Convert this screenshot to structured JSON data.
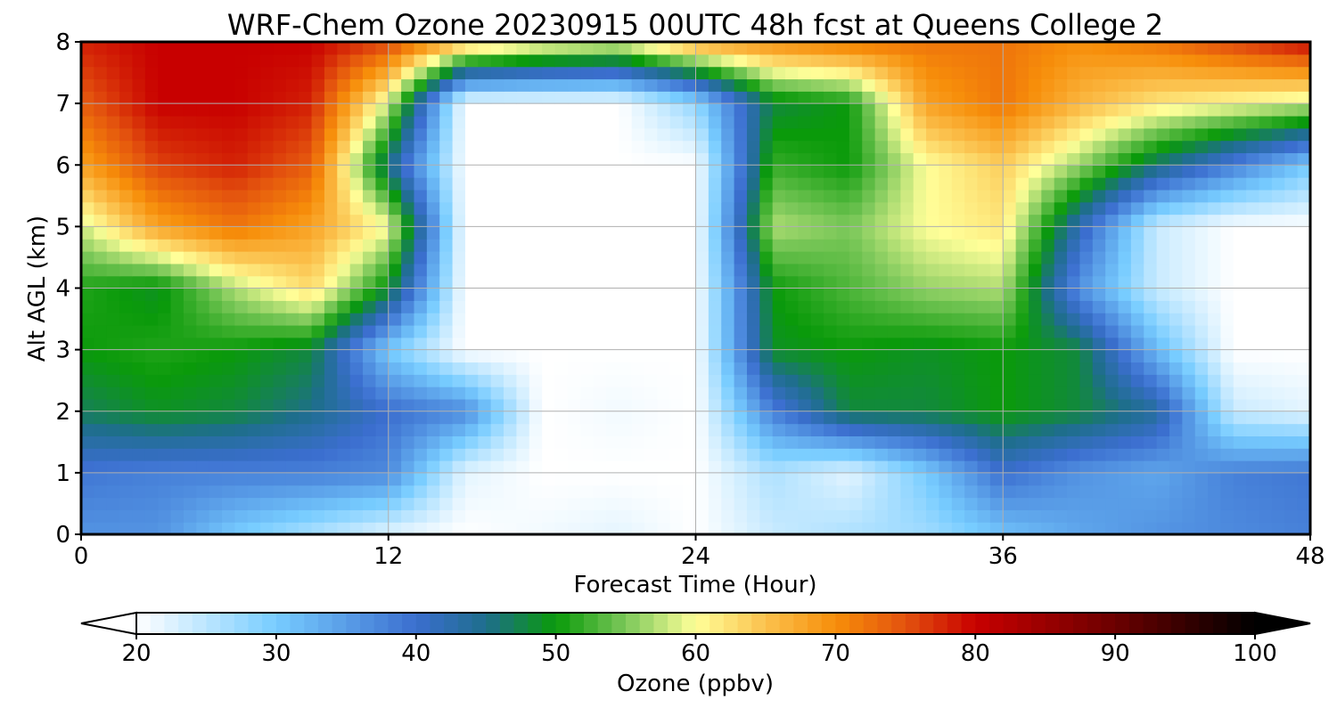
{
  "chart_data": {
    "type": "heatmap",
    "title": "WRF-Chem Ozone  20230915 00UTC 48h fcst at Queens College 2",
    "xlabel": "Forecast Time (Hour)",
    "ylabel": "Alt AGL (km)",
    "xlim": [
      0,
      48
    ],
    "ylim": [
      0,
      8
    ],
    "xticks": [
      0,
      12,
      24,
      36,
      48
    ],
    "yticks": [
      0,
      1,
      2,
      3,
      4,
      5,
      6,
      7,
      8
    ],
    "grid": true,
    "x": [
      0,
      3,
      6,
      9,
      12,
      15,
      18,
      21,
      24,
      27,
      30,
      33,
      36,
      39,
      42,
      45,
      48
    ],
    "y": [
      0,
      1,
      2,
      3,
      4,
      5,
      6,
      7,
      8
    ],
    "z": [
      [
        36,
        36,
        30,
        26,
        22,
        20,
        21,
        22,
        20,
        24,
        26,
        27,
        31,
        34,
        36,
        37,
        38
      ],
      [
        39,
        38,
        38,
        38,
        37,
        22,
        20,
        20,
        20,
        26,
        22,
        30,
        40,
        36,
        34,
        38,
        39
      ],
      [
        47,
        49,
        48,
        45,
        40,
        37,
        20,
        21,
        20,
        38,
        48,
        48,
        50,
        48,
        44,
        24,
        22
      ],
      [
        50,
        51,
        50,
        48,
        30,
        20,
        20,
        20,
        20,
        49,
        50,
        49,
        50,
        48,
        32,
        20,
        20
      ],
      [
        51,
        49,
        57,
        63,
        49,
        20,
        20,
        20,
        20,
        50,
        53,
        56,
        57,
        36,
        24,
        20,
        20
      ],
      [
        58,
        68,
        72,
        68,
        60,
        20,
        20,
        20,
        20,
        57,
        55,
        60,
        62,
        42,
        24,
        20,
        20
      ],
      [
        68,
        76,
        78,
        74,
        45,
        20,
        20,
        20,
        20,
        52,
        50,
        60,
        64,
        56,
        46,
        38,
        30
      ],
      [
        74,
        80,
        80,
        78,
        58,
        20,
        20,
        20,
        28,
        48,
        50,
        68,
        72,
        66,
        62,
        60,
        58
      ],
      [
        78,
        80,
        80,
        80,
        76,
        66,
        62,
        60,
        68,
        70,
        72,
        72,
        72,
        70,
        72,
        76,
        80
      ]
    ],
    "colorbar": {
      "label": "Ozone  (ppbv)",
      "vmin": 20,
      "vmax": 100,
      "ticks": [
        20,
        30,
        40,
        50,
        60,
        70,
        80,
        90,
        100
      ],
      "extend": "both",
      "stops": [
        {
          "v": 20,
          "c": "#ffffff"
        },
        {
          "v": 30,
          "c": "#77ccff"
        },
        {
          "v": 40,
          "c": "#3b6ecf"
        },
        {
          "v": 45,
          "c": "#1e6e8c"
        },
        {
          "v": 50,
          "c": "#0a9a0a"
        },
        {
          "v": 55,
          "c": "#7cc85a"
        },
        {
          "v": 60,
          "c": "#ffff99"
        },
        {
          "v": 65,
          "c": "#fbc14d"
        },
        {
          "v": 70,
          "c": "#f78e0a"
        },
        {
          "v": 75,
          "c": "#e3520e"
        },
        {
          "v": 80,
          "c": "#c80000"
        },
        {
          "v": 90,
          "c": "#6b0000"
        },
        {
          "v": 100,
          "c": "#000000"
        }
      ]
    }
  }
}
